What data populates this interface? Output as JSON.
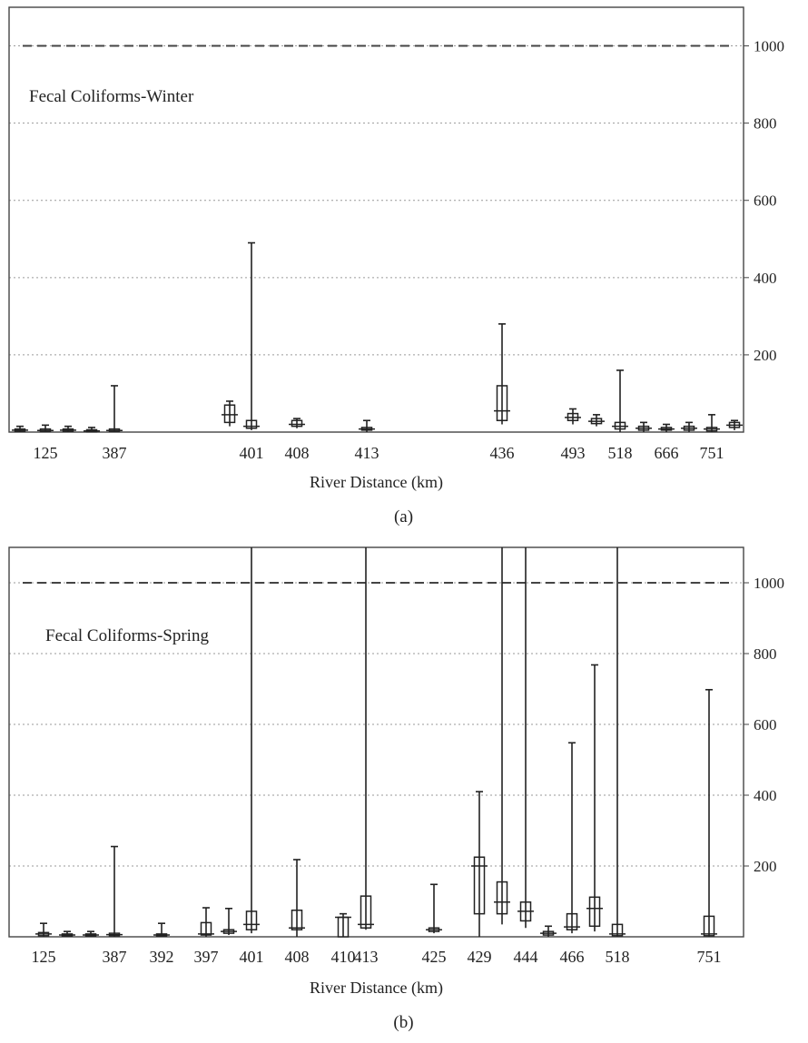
{
  "chart_data": [
    {
      "type": "box",
      "panel_label": "(a)",
      "annotation": "Fecal Coliforms-Winter",
      "xlabel": "River Distance (km)",
      "ylabel": "",
      "ylim": [
        0,
        1100
      ],
      "y_ticks": [
        200,
        400,
        600,
        800,
        1000
      ],
      "y_axis_side": "right",
      "grid": true,
      "reference_line": 1000,
      "x_tick_labels": [
        "125",
        "387",
        "401",
        "408",
        "413",
        "436",
        "493",
        "518",
        "666",
        "751"
      ],
      "boxes": [
        {
          "slot": 0,
          "min": 0,
          "q1": 2,
          "median": 5,
          "q3": 8,
          "max": 15
        },
        {
          "slot": 1,
          "label": "125",
          "min": 0,
          "q1": 2,
          "median": 4,
          "q3": 8,
          "max": 18
        },
        {
          "slot": 2,
          "min": 0,
          "q1": 2,
          "median": 5,
          "q3": 8,
          "max": 15
        },
        {
          "slot": 3,
          "min": 0,
          "q1": 1,
          "median": 3,
          "q3": 6,
          "max": 12
        },
        {
          "slot": 4,
          "label": "387",
          "min": 0,
          "q1": 2,
          "median": 4,
          "q3": 8,
          "max": 120
        },
        {
          "slot": 5,
          "min": 15,
          "q1": 25,
          "median": 45,
          "q3": 70,
          "max": 80
        },
        {
          "slot": 6,
          "label": "401",
          "min": 5,
          "q1": 10,
          "median": 15,
          "q3": 30,
          "max": 490
        },
        {
          "slot": 7,
          "label": "408",
          "min": 10,
          "q1": 15,
          "median": 20,
          "q3": 30,
          "max": 35
        },
        {
          "slot": 8,
          "label": "413",
          "min": 0,
          "q1": 5,
          "median": 8,
          "q3": 12,
          "max": 30
        },
        {
          "slot": 9,
          "label": "436",
          "min": 20,
          "q1": 30,
          "median": 55,
          "q3": 120,
          "max": 280
        },
        {
          "slot": 10,
          "label": "493",
          "min": 20,
          "q1": 30,
          "median": 38,
          "q3": 48,
          "max": 60
        },
        {
          "slot": 11,
          "min": 15,
          "q1": 22,
          "median": 28,
          "q3": 35,
          "max": 45
        },
        {
          "slot": 12,
          "label": "518",
          "min": 0,
          "q1": 8,
          "median": 15,
          "q3": 25,
          "max": 160
        },
        {
          "slot": 13,
          "min": 0,
          "q1": 5,
          "median": 10,
          "q3": 15,
          "max": 25
        },
        {
          "slot": 14,
          "label": "666",
          "min": 0,
          "q1": 5,
          "median": 8,
          "q3": 12,
          "max": 20
        },
        {
          "slot": 15,
          "min": 0,
          "q1": 5,
          "median": 10,
          "q3": 15,
          "max": 25
        },
        {
          "slot": 16,
          "label": "751",
          "min": 0,
          "q1": 3,
          "median": 8,
          "q3": 12,
          "max": 45
        },
        {
          "slot": 17,
          "min": 5,
          "q1": 12,
          "median": 18,
          "q3": 25,
          "max": 30
        }
      ]
    },
    {
      "type": "box",
      "panel_label": "(b)",
      "annotation": "Fecal Coliforms-Spring",
      "xlabel": "River Distance (km)",
      "ylabel": "",
      "ylim": [
        0,
        1100
      ],
      "y_ticks": [
        200,
        400,
        600,
        800,
        1000
      ],
      "y_axis_side": "right",
      "grid": true,
      "reference_line": 1000,
      "x_tick_labels": [
        "125",
        "387",
        "392",
        "397",
        "401",
        "408",
        "410",
        "413",
        "425",
        "429",
        "444",
        "466",
        "518",
        "751"
      ],
      "boxes": [
        {
          "slot": 0,
          "label": "125",
          "min": 0,
          "q1": 3,
          "median": 8,
          "q3": 12,
          "max": 38
        },
        {
          "slot": 1,
          "min": 0,
          "q1": 2,
          "median": 5,
          "q3": 8,
          "max": 15
        },
        {
          "slot": 2,
          "min": 0,
          "q1": 2,
          "median": 5,
          "q3": 8,
          "max": 15
        },
        {
          "slot": 3,
          "label": "387",
          "min": 0,
          "q1": 3,
          "median": 6,
          "q3": 10,
          "max": 255
        },
        {
          "slot": 4,
          "label": "392",
          "min": 0,
          "q1": 2,
          "median": 5,
          "q3": 8,
          "max": 38
        },
        {
          "slot": 5,
          "label": "397",
          "min": 0,
          "q1": 5,
          "median": 8,
          "q3": 40,
          "max": 82
        },
        {
          "slot": 6,
          "min": 5,
          "q1": 10,
          "median": 15,
          "q3": 20,
          "max": 80
        },
        {
          "slot": 7,
          "label": "401",
          "min": 10,
          "q1": 20,
          "median": 35,
          "q3": 72,
          "max": 1100
        },
        {
          "slot": 8,
          "label": "408",
          "min": 0,
          "q1": 20,
          "median": 25,
          "q3": 75,
          "max": 218
        },
        {
          "slot": 9,
          "label": "410",
          "min": 0,
          "q1": 0,
          "median": 55,
          "q3": 55,
          "max": 65
        },
        {
          "slot": 10,
          "label": "413",
          "min": 20,
          "q1": 25,
          "median": 35,
          "q3": 115,
          "max": 1100
        },
        {
          "slot": 11,
          "label": "425",
          "min": 10,
          "q1": 15,
          "median": 20,
          "q3": 25,
          "max": 148
        },
        {
          "slot": 12,
          "label": "429",
          "min": 0,
          "q1": 65,
          "median": 200,
          "q3": 225,
          "max": 410
        },
        {
          "slot": 13,
          "min": 35,
          "q1": 65,
          "median": 98,
          "q3": 155,
          "max": 1100
        },
        {
          "slot": 14,
          "label": "444",
          "min": 25,
          "q1": 45,
          "median": 72,
          "q3": 98,
          "max": 1100
        },
        {
          "slot": 15,
          "min": 0,
          "q1": 5,
          "median": 10,
          "q3": 15,
          "max": 30
        },
        {
          "slot": 16,
          "label": "466",
          "min": 10,
          "q1": 20,
          "median": 28,
          "q3": 65,
          "max": 548
        },
        {
          "slot": 17,
          "min": 15,
          "q1": 30,
          "median": 80,
          "q3": 112,
          "max": 768
        },
        {
          "slot": 18,
          "label": "518",
          "min": 0,
          "q1": 3,
          "median": 8,
          "q3": 35,
          "max": 1100
        },
        {
          "slot": 19,
          "label": "751",
          "min": 0,
          "q1": 3,
          "median": 8,
          "q3": 58,
          "max": 698
        }
      ]
    }
  ]
}
